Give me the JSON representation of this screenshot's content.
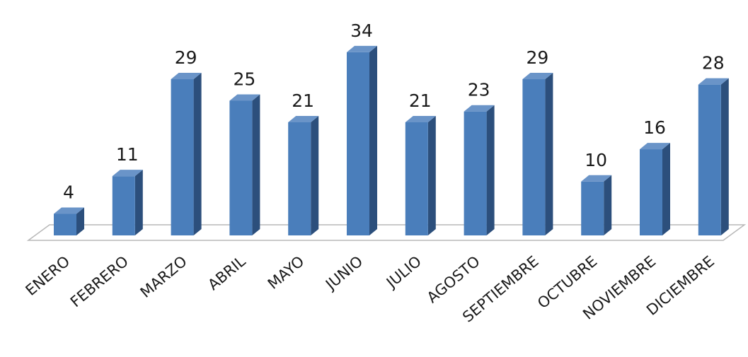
{
  "chart_data": {
    "type": "bar",
    "title": "",
    "xlabel": "",
    "ylabel": "",
    "categories": [
      "ENERO",
      "FEBRERO",
      "MARZO",
      "ABRIL",
      "MAYO",
      "JUNIO",
      "JULIO",
      "AGOSTO",
      "SEPTIEMBRE",
      "OCTUBRE",
      "NOVIEMBRE",
      "DICIEMBRE"
    ],
    "values": [
      4,
      11,
      29,
      25,
      21,
      34,
      21,
      23,
      29,
      10,
      16,
      28
    ],
    "ylim": [
      0,
      34
    ],
    "grid": false,
    "legend": "none",
    "style": "3d-column",
    "colors": {
      "front": "#4a7ebb",
      "side": "#2c4f7c",
      "top": "#6a94c8"
    }
  }
}
